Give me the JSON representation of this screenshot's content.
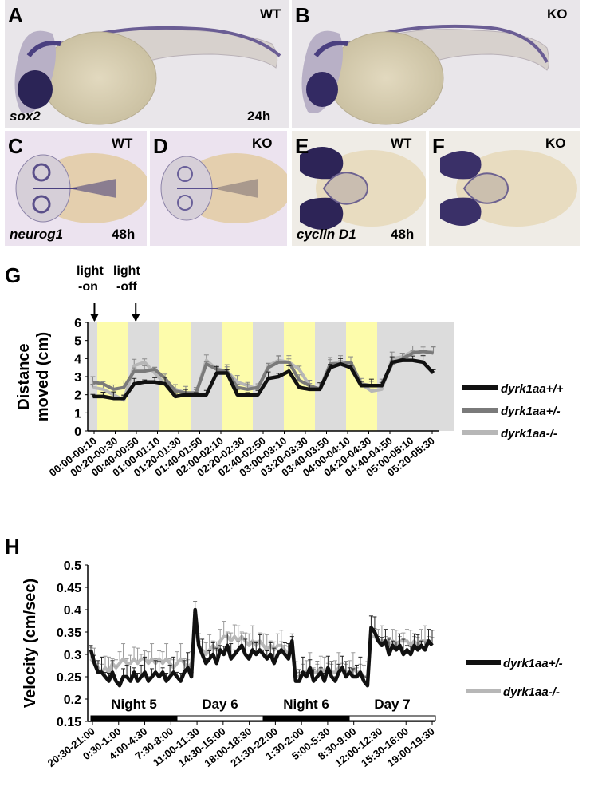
{
  "figure": {
    "panel_letters": {
      "A": "A",
      "B": "B",
      "C": "C",
      "D": "D",
      "E": "E",
      "F": "F",
      "G": "G",
      "H": "H"
    },
    "wt": "WT",
    "ko": "KO",
    "genes": {
      "sox2": "sox2",
      "neurog1": "neurog1",
      "cyclin": "cyclin D1"
    },
    "timepoints": {
      "t24": "24h",
      "t48a": "48h",
      "t48b": "48h"
    }
  },
  "colors": {
    "dark": "#111111",
    "mid": "#7a7a7a",
    "light": "#b7b7b7",
    "lit_band": "#fdfcab",
    "dark_band": "#dcdcdc",
    "stain": "#3a2f66",
    "yolk": "#d8ceb0"
  },
  "chart_data": [
    {
      "type": "line",
      "panel": "G",
      "ylabel_line1": "Distance",
      "ylabel_line2": "moved (cm)",
      "ylim": [
        0,
        6
      ],
      "yticks": [
        "0",
        "1",
        "2",
        "3",
        "4",
        "5",
        "6"
      ],
      "annotations": {
        "light_on_1": "light",
        "light_on_2": "-on",
        "light_off_1": "light",
        "light_off_2": "-off"
      },
      "xtick_labels": [
        "00:00-00:10",
        "00:20-00:30",
        "00:40-00:50",
        "01:00-01:10",
        "01:20-01:30",
        "01:40-01:50",
        "02:00-02:10",
        "02:20-02:30",
        "02:40-02:50",
        "03:00-03:10",
        "03:20-03:30",
        "03:40-03:50",
        "04:00-04:10",
        "04:20-04:30",
        "04:40-04:50",
        "05:00-05:10",
        "05:20-05:30"
      ],
      "bands": [
        "dark",
        "lit",
        "dark",
        "lit",
        "dark",
        "lit",
        "dark",
        "lit",
        "dark",
        "lit",
        "dark"
      ],
      "n_points": 34,
      "series": [
        {
          "name": "dyrk1aa+/+",
          "values": [
            1.9,
            1.9,
            1.8,
            1.8,
            2.6,
            2.7,
            2.7,
            2.6,
            1.9,
            2.0,
            2.0,
            2.0,
            3.2,
            3.2,
            2.0,
            2.0,
            2.0,
            2.9,
            3.0,
            3.3,
            2.4,
            2.3,
            2.3,
            3.5,
            3.7,
            3.5,
            2.5,
            2.5,
            2.5,
            3.8,
            3.9,
            3.9,
            3.8,
            3.2
          ]
        },
        {
          "name": "dyrk1aa+/-",
          "values": [
            2.7,
            2.6,
            2.3,
            2.4,
            3.3,
            3.3,
            3.4,
            2.9,
            2.2,
            2.1,
            2.1,
            3.7,
            3.4,
            3.3,
            2.4,
            2.3,
            2.4,
            3.5,
            3.8,
            3.8,
            2.8,
            2.5,
            2.3,
            3.7,
            3.7,
            3.8,
            2.6,
            2.5,
            2.5,
            3.7,
            4.0,
            4.3,
            4.4,
            4.3
          ]
        },
        {
          "name": "dyrk1aa-/-",
          "values": [
            2.4,
            2.3,
            2.0,
            1.7,
            3.6,
            3.8,
            3.2,
            2.6,
            2.3,
            2.1,
            2.1,
            3.9,
            3.4,
            3.3,
            2.7,
            2.5,
            2.3,
            3.6,
            3.9,
            3.8,
            3.4,
            2.5,
            2.3,
            3.7,
            3.8,
            3.6,
            2.6,
            2.2,
            2.3,
            4.0,
            4.1,
            4.4,
            4.3,
            4.4
          ]
        }
      ]
    },
    {
      "type": "line",
      "panel": "H",
      "ylabel": "Velocity (cm/sec)",
      "ylim": [
        0.15,
        0.5
      ],
      "yticks": [
        "0.15",
        "0.2",
        "0.25",
        "0.3",
        "0.35",
        "0.4",
        "0.45",
        "0.5"
      ],
      "xtick_labels": [
        "20:30-21:00",
        "0:30-1:00",
        "4:00-4:30",
        "7:30-8:00",
        "11:00-11:30",
        "14:30-15:00",
        "18:00-18:30",
        "21:30-22:00",
        "1:30-2:00",
        "5:00-5:30",
        "8:30-9:00",
        "12:00-12:30",
        "15:30-16:00",
        "19:00-19:30"
      ],
      "periods": [
        {
          "label": "Night 5",
          "dark": true
        },
        {
          "label": "Day 6",
          "dark": false
        },
        {
          "label": "Night 6",
          "dark": true
        },
        {
          "label": "Day 7",
          "dark": false
        }
      ],
      "n_points": 96,
      "series": [
        {
          "name": "dyrk1aa+/-",
          "values": [
            0.31,
            0.28,
            0.26,
            0.26,
            0.25,
            0.24,
            0.26,
            0.24,
            0.23,
            0.25,
            0.25,
            0.24,
            0.26,
            0.24,
            0.25,
            0.26,
            0.24,
            0.25,
            0.26,
            0.25,
            0.26,
            0.24,
            0.25,
            0.26,
            0.25,
            0.24,
            0.26,
            0.27,
            0.25,
            0.4,
            0.32,
            0.3,
            0.28,
            0.29,
            0.3,
            0.28,
            0.31,
            0.3,
            0.32,
            0.29,
            0.3,
            0.31,
            0.32,
            0.3,
            0.29,
            0.31,
            0.3,
            0.31,
            0.3,
            0.29,
            0.3,
            0.28,
            0.3,
            0.31,
            0.3,
            0.29,
            0.33,
            0.24,
            0.24,
            0.26,
            0.25,
            0.27,
            0.24,
            0.25,
            0.26,
            0.24,
            0.27,
            0.25,
            0.24,
            0.26,
            0.27,
            0.25,
            0.26,
            0.25,
            0.25,
            0.26,
            0.24,
            0.23,
            0.36,
            0.35,
            0.33,
            0.32,
            0.33,
            0.3,
            0.32,
            0.31,
            0.32,
            0.3,
            0.31,
            0.3,
            0.32,
            0.31,
            0.32,
            0.31,
            0.33,
            0.32
          ]
        },
        {
          "name": "dyrk1aa-/-",
          "values": [
            0.29,
            0.28,
            0.27,
            0.26,
            0.27,
            0.26,
            0.28,
            0.27,
            0.28,
            0.29,
            0.28,
            0.28,
            0.29,
            0.28,
            0.29,
            0.29,
            0.28,
            0.29,
            0.28,
            0.29,
            0.28,
            0.29,
            0.28,
            0.27,
            0.28,
            0.29,
            0.28,
            0.27,
            0.28,
            0.36,
            0.32,
            0.31,
            0.3,
            0.31,
            0.32,
            0.31,
            0.33,
            0.34,
            0.34,
            0.33,
            0.34,
            0.33,
            0.34,
            0.33,
            0.32,
            0.33,
            0.32,
            0.33,
            0.32,
            0.31,
            0.32,
            0.31,
            0.32,
            0.32,
            0.31,
            0.3,
            0.32,
            0.25,
            0.25,
            0.26,
            0.26,
            0.27,
            0.26,
            0.26,
            0.27,
            0.26,
            0.27,
            0.26,
            0.26,
            0.27,
            0.27,
            0.26,
            0.26,
            0.27,
            0.26,
            0.26,
            0.25,
            0.25,
            0.34,
            0.34,
            0.33,
            0.33,
            0.33,
            0.32,
            0.33,
            0.32,
            0.33,
            0.33,
            0.33,
            0.32,
            0.33,
            0.32,
            0.33,
            0.33,
            0.33,
            0.32
          ]
        }
      ]
    }
  ]
}
